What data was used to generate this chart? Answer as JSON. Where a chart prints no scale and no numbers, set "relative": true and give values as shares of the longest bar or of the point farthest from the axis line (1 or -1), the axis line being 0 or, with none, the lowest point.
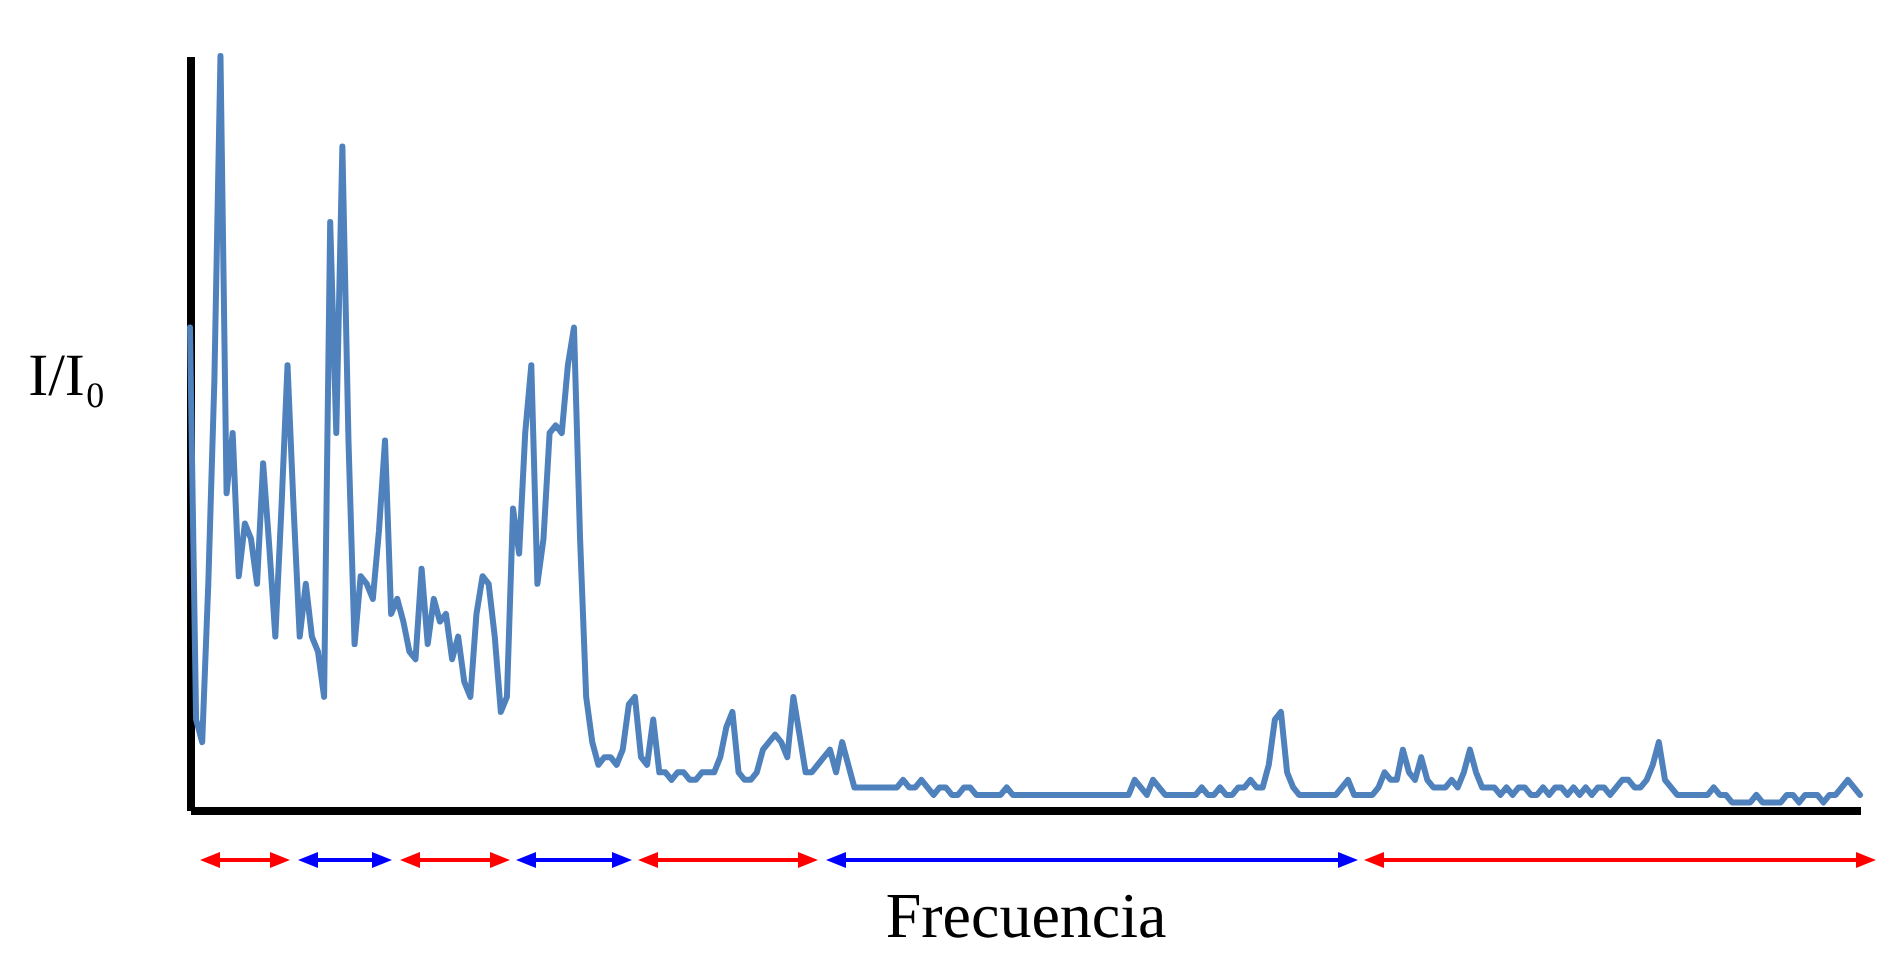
{
  "chart_data": {
    "type": "line",
    "relative": true,
    "xlabel": "Frecuencia",
    "ylabel": "I/I₀",
    "categories": [
      null,
      null,
      null,
      null,
      null,
      null,
      null,
      null,
      null,
      null,
      null,
      null,
      null,
      null,
      null,
      null,
      null,
      null,
      null,
      null,
      null,
      null,
      null,
      null,
      null,
      null,
      null,
      null,
      null,
      null,
      null,
      null,
      null,
      null,
      null,
      null,
      null,
      null,
      null,
      null,
      null,
      null,
      null,
      null,
      null,
      null,
      null,
      null,
      null,
      null,
      null,
      null,
      null,
      null,
      null,
      null,
      null,
      null,
      null,
      null,
      null,
      null,
      null,
      null,
      null,
      null,
      null,
      null,
      null,
      null,
      null,
      null,
      null,
      null,
      null,
      null,
      null,
      null,
      null,
      null,
      null,
      null,
      null,
      null,
      null,
      null,
      null,
      null,
      null,
      null,
      null,
      null,
      null,
      null,
      null,
      null,
      null,
      null,
      null,
      null,
      null,
      null,
      null,
      null,
      null,
      null,
      null,
      null,
      null,
      null,
      null,
      null,
      null,
      null,
      null,
      null,
      null,
      null,
      null,
      null,
      null,
      null,
      null,
      null,
      null,
      null,
      null,
      null,
      null,
      null,
      null,
      null,
      null,
      null,
      null,
      null,
      null,
      null,
      null,
      null,
      null,
      null,
      null,
      null,
      null,
      null,
      null,
      null,
      null,
      null,
      null,
      null,
      null,
      null,
      null,
      null,
      null,
      null,
      null,
      null,
      null,
      null,
      null,
      null,
      null,
      null,
      null,
      null,
      null,
      null,
      null,
      null,
      null,
      null,
      null,
      null,
      null,
      null,
      null,
      null,
      null,
      null,
      null,
      null,
      null,
      null,
      null,
      null,
      null,
      null,
      null,
      null,
      null,
      null,
      null,
      null,
      null,
      null,
      null,
      null,
      null,
      null,
      null,
      null,
      null,
      null,
      null,
      null,
      null,
      null,
      null,
      null,
      null,
      null,
      null,
      null,
      null,
      null,
      null,
      null,
      null,
      null,
      null,
      null,
      null,
      null,
      null,
      null,
      null,
      null,
      null,
      null,
      null,
      null,
      null,
      null,
      null,
      null,
      null,
      null,
      null,
      null,
      null,
      null,
      null,
      null,
      null,
      null,
      null,
      null,
      null,
      null,
      null,
      null,
      null,
      null,
      null,
      null,
      null,
      null,
      null,
      null,
      null,
      null,
      null,
      null,
      null,
      null,
      null,
      null,
      null,
      null,
      null,
      null,
      null
    ],
    "series": [
      {
        "color": "#4f81bd",
        "values": [
          0.64,
          0.12,
          0.09,
          0.3,
          0.57,
          1.0,
          0.42,
          0.5,
          0.31,
          0.38,
          0.36,
          0.3,
          0.46,
          0.35,
          0.23,
          0.4,
          0.59,
          0.4,
          0.23,
          0.3,
          0.23,
          0.21,
          0.15,
          0.78,
          0.5,
          0.88,
          0.49,
          0.22,
          0.31,
          0.3,
          0.28,
          0.37,
          0.49,
          0.26,
          0.28,
          0.25,
          0.21,
          0.2,
          0.32,
          0.22,
          0.28,
          0.25,
          0.26,
          0.2,
          0.23,
          0.17,
          0.15,
          0.26,
          0.31,
          0.3,
          0.23,
          0.13,
          0.15,
          0.4,
          0.34,
          0.5,
          0.59,
          0.3,
          0.36,
          0.5,
          0.51,
          0.5,
          0.59,
          0.64,
          0.36,
          0.15,
          0.09,
          0.06,
          0.07,
          0.07,
          0.06,
          0.08,
          0.14,
          0.15,
          0.07,
          0.06,
          0.12,
          0.05,
          0.05,
          0.04,
          0.05,
          0.05,
          0.04,
          0.04,
          0.05,
          0.05,
          0.05,
          0.07,
          0.11,
          0.13,
          0.05,
          0.04,
          0.04,
          0.05,
          0.08,
          0.09,
          0.1,
          0.09,
          0.07,
          0.15,
          0.1,
          0.05,
          0.05,
          0.06,
          0.07,
          0.08,
          0.05,
          0.09,
          0.06,
          0.03,
          0.03,
          0.03,
          0.03,
          0.03,
          0.03,
          0.03,
          0.03,
          0.04,
          0.03,
          0.03,
          0.04,
          0.03,
          0.02,
          0.03,
          0.03,
          0.02,
          0.02,
          0.03,
          0.03,
          0.02,
          0.02,
          0.02,
          0.02,
          0.02,
          0.03,
          0.02,
          0.02,
          0.02,
          0.02,
          0.02,
          0.02,
          0.02,
          0.02,
          0.02,
          0.02,
          0.02,
          0.02,
          0.02,
          0.02,
          0.02,
          0.02,
          0.02,
          0.02,
          0.02,
          0.02,
          0.04,
          0.03,
          0.02,
          0.04,
          0.03,
          0.02,
          0.02,
          0.02,
          0.02,
          0.02,
          0.02,
          0.03,
          0.02,
          0.02,
          0.03,
          0.02,
          0.02,
          0.03,
          0.03,
          0.04,
          0.03,
          0.03,
          0.06,
          0.12,
          0.13,
          0.05,
          0.03,
          0.02,
          0.02,
          0.02,
          0.02,
          0.02,
          0.02,
          0.02,
          0.03,
          0.04,
          0.02,
          0.02,
          0.02,
          0.02,
          0.03,
          0.05,
          0.04,
          0.04,
          0.08,
          0.05,
          0.04,
          0.07,
          0.04,
          0.03,
          0.03,
          0.03,
          0.04,
          0.03,
          0.05,
          0.08,
          0.05,
          0.03,
          0.03,
          0.03,
          0.02,
          0.03,
          0.02,
          0.03,
          0.03,
          0.02,
          0.02,
          0.03,
          0.02,
          0.03,
          0.03,
          0.02,
          0.03,
          0.02,
          0.03,
          0.02,
          0.03,
          0.03,
          0.02,
          0.03,
          0.04,
          0.04,
          0.03,
          0.03,
          0.04,
          0.06,
          0.09,
          0.04,
          0.03,
          0.02,
          0.02,
          0.02,
          0.02,
          0.02,
          0.02,
          0.03,
          0.02,
          0.02,
          0.01,
          0.01,
          0.01,
          0.01,
          0.02,
          0.01,
          0.01,
          0.01,
          0.01,
          0.02,
          0.02,
          0.01,
          0.02,
          0.02,
          0.02,
          0.01,
          0.02,
          0.02,
          0.03,
          0.04,
          0.03,
          0.02
        ]
      }
    ]
  }
}
